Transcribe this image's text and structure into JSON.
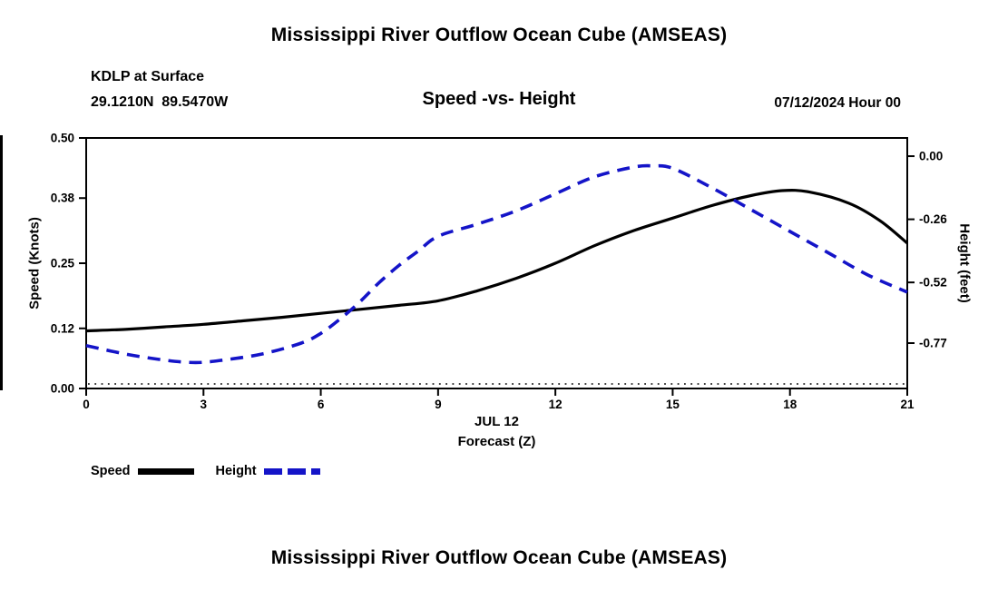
{
  "page": {
    "top_title": "Mississippi River Outflow Ocean Cube (AMSEAS)",
    "bottom_title": "Mississippi River Outflow Ocean Cube (AMSEAS)"
  },
  "header": {
    "station_line": "KDLP at Surface",
    "coordinates": "29.1210N  89.5470W",
    "plot_title": "Speed -vs- Height",
    "run_datetime": "07/12/2024 Hour 00"
  },
  "chart_data": {
    "type": "line",
    "title": "Speed -vs- Height",
    "x_caption_line1": "JUL 12",
    "x_caption_line2": "Forecast (Z)",
    "xlim": [
      0,
      21
    ],
    "x_tick_labels": [
      "0",
      "3",
      "6",
      "9",
      "12",
      "15",
      "18",
      "21"
    ],
    "grid": "zero-line-dotted",
    "left_axis": {
      "label": "Speed (Knots)",
      "lim": [
        0,
        0.5
      ],
      "tick_labels": [
        "0.00",
        "0.12",
        "0.25",
        "0.38",
        "0.50"
      ]
    },
    "right_axis": {
      "label": "Height (feet)",
      "lim": [
        -0.957,
        0.075
      ],
      "tick_labels": [
        "0.00",
        "-0.26",
        "-0.52",
        "-0.77"
      ]
    },
    "series": [
      {
        "name": "Speed",
        "axis": "left",
        "color": "#000000",
        "style": "solid",
        "x": [
          0,
          1,
          2,
          3,
          4,
          5,
          6,
          7,
          8,
          9,
          10,
          11,
          12,
          13,
          14,
          15,
          16,
          17,
          17.8,
          18.5,
          19.5,
          20.3,
          21
        ],
        "values": [
          0.115,
          0.118,
          0.123,
          0.128,
          0.135,
          0.142,
          0.15,
          0.158,
          0.166,
          0.175,
          0.195,
          0.22,
          0.25,
          0.285,
          0.315,
          0.34,
          0.365,
          0.385,
          0.395,
          0.392,
          0.37,
          0.335,
          0.29
        ]
      },
      {
        "name": "Height",
        "axis": "right",
        "color": "#1414c8",
        "style": "dashed",
        "x": [
          0,
          1,
          2,
          2.8,
          3.5,
          4.5,
          5.5,
          6,
          6.5,
          7,
          7.5,
          8,
          8.5,
          9,
          10,
          11,
          12,
          13,
          14,
          14.5,
          15,
          16,
          17,
          18,
          19,
          20,
          21
        ],
        "values": [
          -0.78,
          -0.815,
          -0.84,
          -0.85,
          -0.84,
          -0.815,
          -0.77,
          -0.73,
          -0.67,
          -0.6,
          -0.52,
          -0.45,
          -0.39,
          -0.33,
          -0.28,
          -0.225,
          -0.155,
          -0.085,
          -0.045,
          -0.04,
          -0.05,
          -0.13,
          -0.22,
          -0.31,
          -0.4,
          -0.49,
          -0.56
        ]
      }
    ],
    "legend": [
      {
        "label": "Speed",
        "color": "#000000",
        "style": "solid"
      },
      {
        "label": "Height",
        "color": "#1414c8",
        "style": "dashed"
      }
    ]
  }
}
